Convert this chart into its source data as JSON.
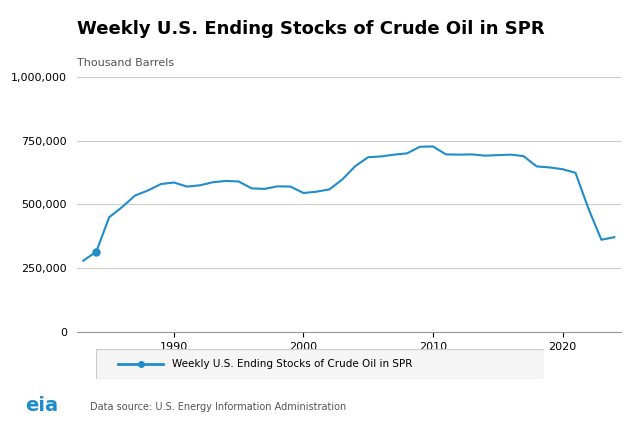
{
  "title": "Weekly U.S. Ending Stocks of Crude Oil in SPR",
  "ylabel": "Thousand Barrels",
  "line_color": "#1f8dc9",
  "line_width": 1.5,
  "background_color": "#ffffff",
  "grid_color": "#cccccc",
  "legend_label": "Weekly U.S. Ending Stocks of Crude Oil in SPR",
  "data_source": "Data source: U.S. Energy Information Administration",
  "ylim": [
    0,
    1000000
  ],
  "yticks": [
    0,
    250000,
    500000,
    750000,
    1000000
  ],
  "ytick_labels": [
    "0",
    "250,000",
    "500,000",
    "750,000",
    "1,000,000"
  ],
  "xticks": [
    1990,
    2000,
    2010,
    2020
  ],
  "years": [
    1983,
    1984,
    1985,
    1986,
    1987,
    1988,
    1989,
    1990,
    1991,
    1992,
    1993,
    1994,
    1995,
    1996,
    1997,
    1998,
    1999,
    2000,
    2001,
    2002,
    2003,
    2004,
    2005,
    2006,
    2007,
    2008,
    2009,
    2010,
    2011,
    2012,
    2013,
    2014,
    2015,
    2016,
    2017,
    2018,
    2019,
    2020,
    2021,
    2022,
    2023,
    2024
  ],
  "values": [
    280000,
    315000,
    450000,
    490000,
    535000,
    555000,
    580000,
    586000,
    570000,
    575000,
    587000,
    592000,
    590000,
    563000,
    561000,
    571000,
    570000,
    545000,
    550000,
    559000,
    598000,
    650000,
    685000,
    688000,
    695000,
    700000,
    726000,
    727000,
    696000,
    695000,
    696000,
    691000,
    693000,
    695000,
    689000,
    649000,
    645000,
    638000,
    624000,
    484000,
    362000,
    372000
  ],
  "marker_year": 1984,
  "marker_value": 315000
}
